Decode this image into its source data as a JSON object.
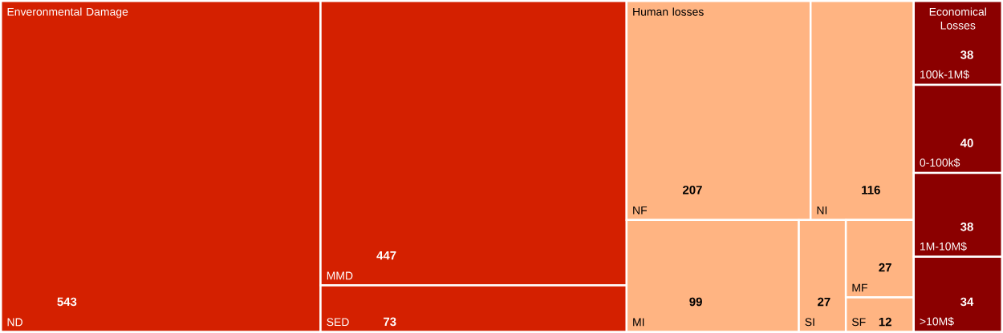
{
  "chart_data": {
    "type": "other",
    "categories": [
      "ND",
      "MMD",
      "SED",
      "NF",
      "NI",
      "MI",
      "SI",
      "MF",
      "SF",
      "100k-1M$",
      "0-100k$",
      "1M-10M$",
      ">10M$"
    ],
    "series": [
      {
        "name": "Enveronmental Damage",
        "color": "#d42000",
        "values": [
          543,
          447,
          73,
          null,
          null,
          null,
          null,
          null,
          null,
          null,
          null,
          null,
          null
        ]
      },
      {
        "name": "Human losses",
        "color": "#ffb482",
        "values": [
          null,
          null,
          null,
          207,
          116,
          99,
          27,
          27,
          12,
          null,
          null,
          null,
          null
        ]
      },
      {
        "name": "Economical Losses",
        "color": "#8b0000",
        "values": [
          null,
          null,
          null,
          null,
          null,
          null,
          null,
          null,
          null,
          38,
          40,
          38,
          34
        ]
      }
    ],
    "data_labels": true
  }
}
